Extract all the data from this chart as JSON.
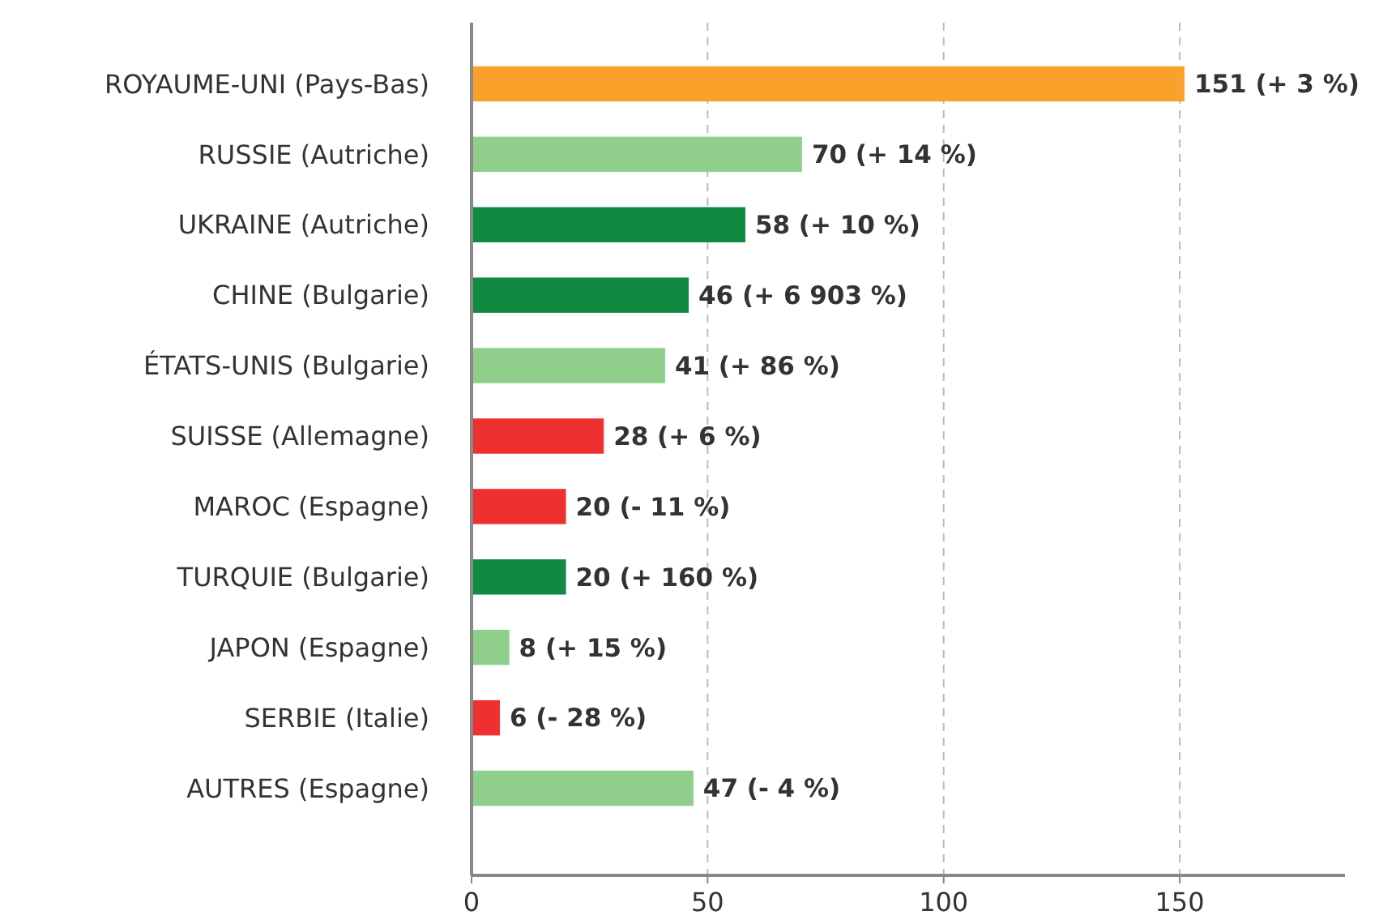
{
  "chart_data": {
    "type": "bar",
    "orientation": "horizontal",
    "categories": [
      "ROYAUME-UNI (Pays-Bas)",
      "RUSSIE (Autriche)",
      "UKRAINE (Autriche)",
      "CHINE (Bulgarie)",
      "ÉTATS-UNIS (Bulgarie)",
      "SUISSE (Allemagne)",
      "MAROC (Espagne)",
      "TURQUIE (Bulgarie)",
      "JAPON (Espagne)",
      "SERBIE (Italie)",
      "AUTRES (Espagne)"
    ],
    "values": [
      151,
      70,
      58,
      46,
      41,
      28,
      20,
      20,
      8,
      6,
      47
    ],
    "colors": [
      "#f9a12b",
      "#8fcf8b",
      "#118a41",
      "#118a41",
      "#8fcf8b",
      "#ee3030",
      "#ee3030",
      "#118a41",
      "#8fcf8b",
      "#ee3030",
      "#8fcf8b"
    ],
    "value_labels": [
      "151 (+ 3 %)",
      "70 (+ 14 %)",
      "58 (+ 10 %)",
      "46 (+ 6 903 %)",
      "41 (+ 86 %)",
      "28 (+ 6 %)",
      "20 (- 11 %)",
      "20 (+ 160 %)",
      "8 (+ 15 %)",
      "6 (- 28 %)",
      "47 (- 4 %)"
    ],
    "xlim": [
      0,
      185
    ],
    "xticks": [
      0,
      50,
      100,
      150
    ],
    "grid": "x"
  }
}
